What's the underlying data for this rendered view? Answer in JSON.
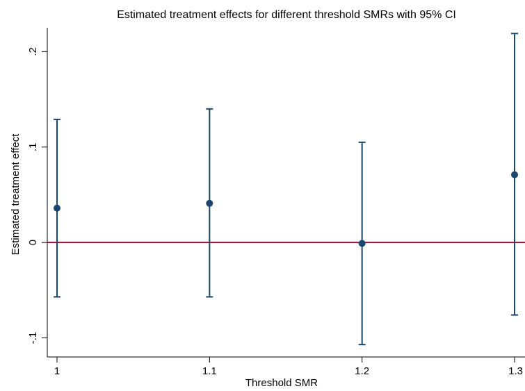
{
  "chart_data": {
    "type": "scatter",
    "title": "Estimated treatment effects for different threshold SMRs with 95% CI",
    "xlabel": "Threshold SMR",
    "ylabel": "Estimated treatment effect",
    "xlim": [
      1,
      1.3
    ],
    "ylim": [
      -0.12,
      0.225
    ],
    "x_ticks": [
      {
        "value": 1,
        "label": "1"
      },
      {
        "value": 1.1,
        "label": "1.1"
      },
      {
        "value": 1.2,
        "label": "1.2"
      },
      {
        "value": 1.3,
        "label": "1.3"
      }
    ],
    "y_ticks": [
      {
        "value": -0.1,
        "label": "-.1"
      },
      {
        "value": 0,
        "label": "0"
      },
      {
        "value": 0.1,
        "label": ".1"
      },
      {
        "value": 0.2,
        "label": ".2"
      }
    ],
    "reference_line": {
      "y": 0,
      "color": "#a0103a"
    },
    "points": [
      {
        "x": 1.0,
        "y": 0.036,
        "ci_low": -0.057,
        "ci_high": 0.129
      },
      {
        "x": 1.1,
        "y": 0.041,
        "ci_low": -0.057,
        "ci_high": 0.14
      },
      {
        "x": 1.2,
        "y": -0.001,
        "ci_low": -0.107,
        "ci_high": 0.105
      },
      {
        "x": 1.3,
        "y": 0.071,
        "ci_low": -0.076,
        "ci_high": 0.219
      }
    ],
    "grid": false,
    "colors": {
      "marker": "#1a476f",
      "ci": "#1a476f",
      "axis": "#000000"
    }
  }
}
